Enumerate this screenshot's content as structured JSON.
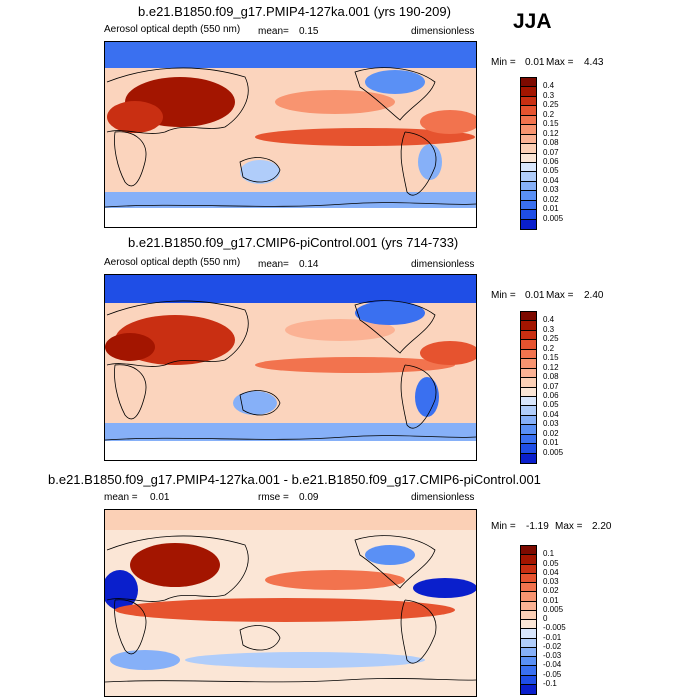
{
  "season": "JJA",
  "colors": {
    "abs": [
      "#08006e",
      "#0a1fcc",
      "#1f4ee6",
      "#3a70f0",
      "#5a90f5",
      "#86b0f8",
      "#b0cdfa",
      "#d8e6fc",
      "#fbe6d6",
      "#fcd0b6",
      "#fbb294",
      "#f89470",
      "#f2734e",
      "#e6532f",
      "#c92f12",
      "#a31500",
      "#7d0a00"
    ],
    "diff": [
      "#08006e",
      "#0a1fcc",
      "#1f4ee6",
      "#3a70f0",
      "#5a90f5",
      "#86b0f8",
      "#b0cdfa",
      "#d8e6fc",
      "#fbe6d6",
      "#fcd0b6",
      "#fbb294",
      "#f89470",
      "#f2734e",
      "#e6532f",
      "#c92f12",
      "#a31500",
      "#7d0a00"
    ]
  },
  "panels": [
    {
      "title": "b.e21.B1850.f09_g17.PMIP4-127ka.001 (yrs 190-209)",
      "variable": "Aerosol optical depth (550 nm)",
      "mean_label": "mean=",
      "mean_value": "0.15",
      "units": "dimensionless",
      "min_label": "Min =",
      "min_value": "0.01",
      "max_label": "Max =",
      "max_value": "4.43",
      "levels": [
        "0.4",
        "0.3",
        "0.25",
        "0.2",
        "0.15",
        "0.12",
        "0.08",
        "0.07",
        "0.06",
        "0.05",
        "0.04",
        "0.03",
        "0.02",
        "0.01",
        "0.005"
      ]
    },
    {
      "title": "b.e21.B1850.f09_g17.CMIP6-piControl.001 (yrs 714-733)",
      "variable": "Aerosol optical depth (550 nm)",
      "mean_label": "mean=",
      "mean_value": "0.14",
      "units": "dimensionless",
      "min_label": "Min =",
      "min_value": "0.01",
      "max_label": "Max =",
      "max_value": "2.40",
      "levels": [
        "0.4",
        "0.3",
        "0.25",
        "0.2",
        "0.15",
        "0.12",
        "0.08",
        "0.07",
        "0.06",
        "0.05",
        "0.04",
        "0.03",
        "0.02",
        "0.01",
        "0.005"
      ]
    },
    {
      "title": "b.e21.B1850.f09_g17.PMIP4-127ka.001 - b.e21.B1850.f09_g17.CMIP6-piControl.001",
      "variable": "",
      "mean_label": "mean =",
      "mean_value": "0.01",
      "rmse_label": "rmse =",
      "rmse_value": "0.09",
      "units": "dimensionless",
      "min_label": "Min =",
      "min_value": "-1.19",
      "max_label": "Max =",
      "max_value": "2.20",
      "levels": [
        "0.1",
        "0.05",
        "0.04",
        "0.03",
        "0.02",
        "0.01",
        "0.005",
        "0",
        "-0.005",
        "-0.01",
        "-0.02",
        "-0.03",
        "-0.04",
        "-0.05",
        "-0.1"
      ]
    }
  ]
}
